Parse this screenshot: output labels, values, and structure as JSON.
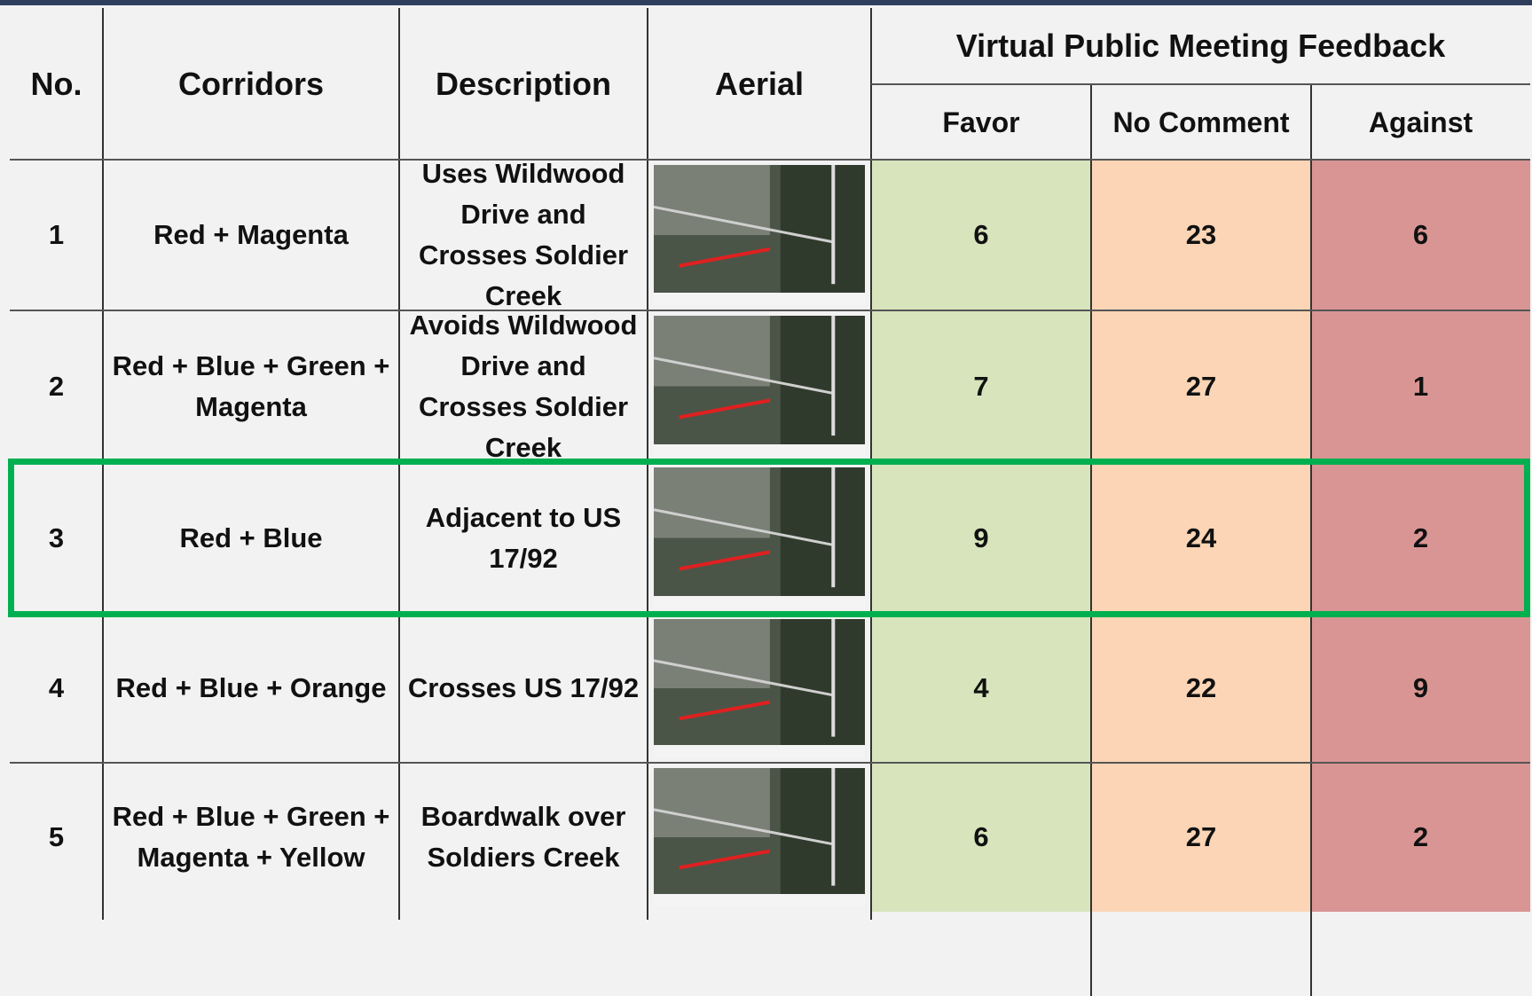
{
  "header": {
    "columns": [
      "No.",
      "Corridors",
      "Description",
      "Aerial"
    ],
    "group": "Virtual Public Meeting Feedback",
    "subcolumns": [
      "Favor",
      "No Comment",
      "Against"
    ]
  },
  "rows": [
    {
      "no": 1,
      "corridors": "Red + Magenta",
      "description": "Uses Wildwood Drive and Crosses Soldier Creek",
      "favor": 6,
      "no_comment": 23,
      "against": 6
    },
    {
      "no": 2,
      "corridors": "Red + Blue + Green + Magenta",
      "description": "Avoids Wildwood Drive and Crosses Soldier Creek",
      "favor": 7,
      "no_comment": 27,
      "against": 1
    },
    {
      "no": 3,
      "corridors": "Red + Blue",
      "description": "Adjacent to US 17/92",
      "favor": 9,
      "no_comment": 24,
      "against": 2
    },
    {
      "no": 4,
      "corridors": "Red + Blue + Orange",
      "description": "Crosses US 17/92",
      "favor": 4,
      "no_comment": 22,
      "against": 9
    },
    {
      "no": 5,
      "corridors": "Red + Blue + Green + Magenta + Yellow",
      "description": "Boardwalk over Soldiers Creek",
      "favor": 6,
      "no_comment": 27,
      "against": 2
    }
  ]
}
